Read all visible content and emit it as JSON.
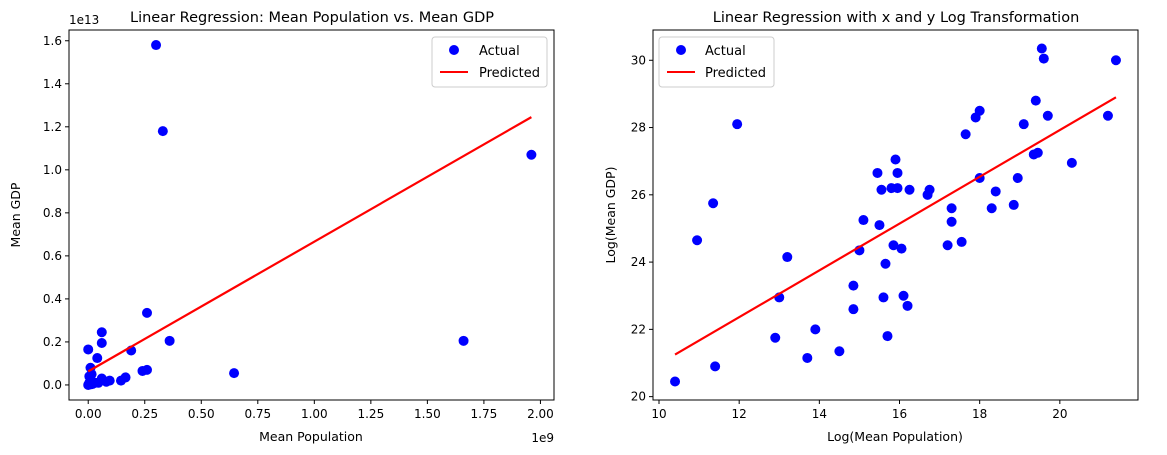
{
  "chart_data": [
    {
      "type": "scatter",
      "title": "Linear Regression: Mean Population vs. Mean GDP",
      "xlabel": "Mean Population",
      "ylabel": "Mean GDP",
      "x_offset_label": "1e9",
      "y_offset_label": "1e13",
      "xlim": [
        -0.085,
        2.06
      ],
      "ylim": [
        -0.07,
        1.65
      ],
      "xticks": [
        0.0,
        0.25,
        0.5,
        0.75,
        1.0,
        1.25,
        1.5,
        1.75,
        2.0
      ],
      "xtick_labels": [
        "0.00",
        "0.25",
        "0.50",
        "0.75",
        "1.00",
        "1.25",
        "1.50",
        "1.75",
        "2.00"
      ],
      "yticks": [
        0.0,
        0.2,
        0.4,
        0.6,
        0.8,
        1.0,
        1.2,
        1.4,
        1.6
      ],
      "ytick_labels": [
        "0.0",
        "0.2",
        "0.4",
        "0.6",
        "0.8",
        "1.0",
        "1.2",
        "1.4",
        "1.6"
      ],
      "grid": false,
      "legend_position": "top-right",
      "series": [
        {
          "name": "Actual",
          "kind": "scatter",
          "color": "#0000ff",
          "points": [
            [
              0.3,
              1.58
            ],
            [
              0.33,
              1.18
            ],
            [
              1.96,
              1.07
            ],
            [
              0.26,
              0.335
            ],
            [
              0.06,
              0.245
            ],
            [
              1.66,
              0.205
            ],
            [
              0.36,
              0.205
            ],
            [
              0.0,
              0.165
            ],
            [
              0.19,
              0.16
            ],
            [
              0.06,
              0.195
            ],
            [
              0.04,
              0.125
            ],
            [
              0.645,
              0.055
            ],
            [
              0.26,
              0.07
            ],
            [
              0.24,
              0.065
            ],
            [
              0.165,
              0.035
            ],
            [
              0.145,
              0.02
            ],
            [
              0.06,
              0.03
            ],
            [
              0.095,
              0.02
            ],
            [
              0.08,
              0.015
            ],
            [
              0.015,
              0.05
            ],
            [
              0.01,
              0.02
            ],
            [
              0.005,
              0.01
            ],
            [
              0.0,
              0.0
            ],
            [
              0.02,
              0.005
            ],
            [
              0.03,
              0.01
            ],
            [
              0.045,
              0.01
            ],
            [
              0.01,
              0.08
            ],
            [
              0.005,
              0.04
            ],
            [
              0.002,
              0.002
            ],
            [
              0.012,
              0.003
            ]
          ]
        },
        {
          "name": "Predicted",
          "kind": "line",
          "color": "#ff0000",
          "points": [
            [
              0.0,
              0.063
            ],
            [
              1.96,
              1.245
            ]
          ]
        }
      ]
    },
    {
      "type": "scatter",
      "title": "Linear Regression with x and y Log Transformation",
      "xlabel": "Log(Mean Population)",
      "ylabel": "Log(Mean GDP)",
      "xlim": [
        9.85,
        21.95
      ],
      "ylim": [
        19.9,
        30.9
      ],
      "xticks": [
        10,
        12,
        14,
        16,
        18,
        20
      ],
      "xtick_labels": [
        "10",
        "12",
        "14",
        "16",
        "18",
        "20"
      ],
      "yticks": [
        20,
        22,
        24,
        26,
        28,
        30
      ],
      "ytick_labels": [
        "20",
        "22",
        "24",
        "26",
        "28",
        "30"
      ],
      "grid": false,
      "legend_position": "top-left",
      "series": [
        {
          "name": "Actual",
          "kind": "scatter",
          "color": "#0000ff",
          "points": [
            [
              10.4,
              20.45
            ],
            [
              10.95,
              24.65
            ],
            [
              11.35,
              25.75
            ],
            [
              11.4,
              20.9
            ],
            [
              11.95,
              28.1
            ],
            [
              12.9,
              21.75
            ],
            [
              13.0,
              22.95
            ],
            [
              13.2,
              24.15
            ],
            [
              13.7,
              21.15
            ],
            [
              13.9,
              22.0
            ],
            [
              14.5,
              21.35
            ],
            [
              14.85,
              22.6
            ],
            [
              14.85,
              23.3
            ],
            [
              15.0,
              24.35
            ],
            [
              15.1,
              25.25
            ],
            [
              15.45,
              26.65
            ],
            [
              15.5,
              25.1
            ],
            [
              15.55,
              26.15
            ],
            [
              15.6,
              22.95
            ],
            [
              15.65,
              23.95
            ],
            [
              15.7,
              21.8
            ],
            [
              15.8,
              26.2
            ],
            [
              15.85,
              24.5
            ],
            [
              15.9,
              27.05
            ],
            [
              15.95,
              26.2
            ],
            [
              15.95,
              26.65
            ],
            [
              16.05,
              24.4
            ],
            [
              16.1,
              23.0
            ],
            [
              16.2,
              22.7
            ],
            [
              16.25,
              26.15
            ],
            [
              16.7,
              26.0
            ],
            [
              16.75,
              26.15
            ],
            [
              17.2,
              24.5
            ],
            [
              17.3,
              25.6
            ],
            [
              17.3,
              25.2
            ],
            [
              17.55,
              24.6
            ],
            [
              17.65,
              27.8
            ],
            [
              17.9,
              28.3
            ],
            [
              18.0,
              28.5
            ],
            [
              18.0,
              26.5
            ],
            [
              18.3,
              25.6
            ],
            [
              18.4,
              26.1
            ],
            [
              18.85,
              25.7
            ],
            [
              18.95,
              26.5
            ],
            [
              19.1,
              28.1
            ],
            [
              19.35,
              27.2
            ],
            [
              19.4,
              28.8
            ],
            [
              19.45,
              27.25
            ],
            [
              19.55,
              30.35
            ],
            [
              19.6,
              30.05
            ],
            [
              19.7,
              28.35
            ],
            [
              20.3,
              26.95
            ],
            [
              21.2,
              28.35
            ],
            [
              21.4,
              30.0
            ]
          ]
        },
        {
          "name": "Predicted",
          "kind": "line",
          "color": "#ff0000",
          "points": [
            [
              10.4,
              21.25
            ],
            [
              21.4,
              28.9
            ]
          ]
        }
      ]
    }
  ]
}
